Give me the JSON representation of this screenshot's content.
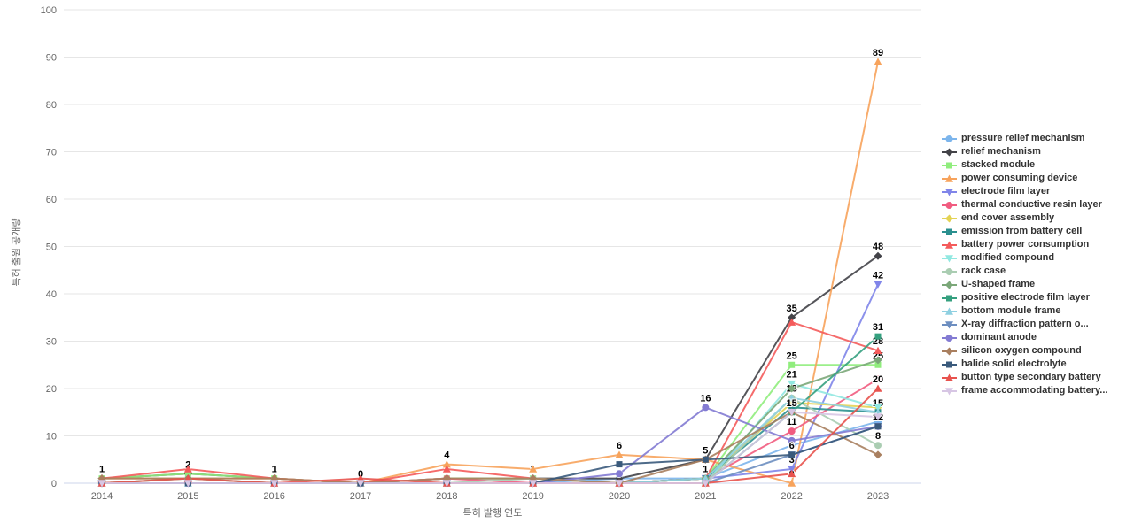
{
  "chart_data": {
    "type": "line",
    "title": "",
    "xlabel": "특허 발행 연도",
    "ylabel": "특허 출원 공개량",
    "ylim": [
      0,
      100
    ],
    "y_ticks": [
      0,
      10,
      20,
      30,
      40,
      50,
      60,
      70,
      80,
      90,
      100
    ],
    "categories": [
      "2014",
      "2015",
      "2016",
      "2017",
      "2018",
      "2019",
      "2020",
      "2021",
      "2022",
      "2023"
    ],
    "grid": "horizontal",
    "legend_position": "right",
    "series": [
      {
        "name": "pressure relief mechanism",
        "color": "#7cb5ec",
        "marker": "circle",
        "values": [
          0,
          0,
          0,
          0,
          0,
          0,
          1,
          1,
          8,
          13
        ],
        "labeled_years": []
      },
      {
        "name": "relief mechanism",
        "color": "#434348",
        "marker": "diamond",
        "values": [
          1,
          2,
          1,
          0,
          1,
          1,
          1,
          5,
          35,
          48
        ],
        "labeled_years": [
          "2014",
          "2015",
          "2016",
          "2017",
          "2018",
          "2019",
          "2022",
          "2023"
        ]
      },
      {
        "name": "stacked module",
        "color": "#90ed7d",
        "marker": "square",
        "values": [
          1,
          2,
          1,
          0,
          1,
          1,
          0,
          1,
          25,
          25
        ],
        "labeled_years": [
          "2020",
          "2022",
          "2023"
        ]
      },
      {
        "name": "power consuming device",
        "color": "#f7a35c",
        "marker": "triangle",
        "values": [
          1,
          1,
          1,
          0,
          4,
          3,
          6,
          5,
          0,
          89
        ],
        "labeled_years": [
          "2018",
          "2020",
          "2021",
          "2022",
          "2023"
        ]
      },
      {
        "name": "electrode film layer",
        "color": "#8085e9",
        "marker": "triangle-down",
        "values": [
          0,
          0,
          0,
          0,
          0,
          0,
          0,
          1,
          3,
          42
        ],
        "labeled_years": [
          "2022",
          "2023"
        ]
      },
      {
        "name": "thermal conductive resin layer",
        "color": "#f15c80",
        "marker": "circle",
        "values": [
          0,
          0,
          0,
          0,
          1,
          0,
          0,
          1,
          11,
          22
        ],
        "labeled_years": [
          "2022"
        ]
      },
      {
        "name": "end cover assembly",
        "color": "#e4d354",
        "marker": "diamond",
        "values": [
          0,
          0,
          0,
          0,
          0,
          0,
          0,
          1,
          17,
          16
        ],
        "labeled_years": []
      },
      {
        "name": "emission from battery cell",
        "color": "#2b908f",
        "marker": "square",
        "values": [
          0,
          0,
          0,
          0,
          0,
          0,
          0,
          1,
          16,
          15
        ],
        "labeled_years": [
          "2023"
        ]
      },
      {
        "name": "battery power consumption",
        "color": "#f45b5b",
        "marker": "triangle",
        "values": [
          1,
          3,
          1,
          0,
          3,
          1,
          0,
          1,
          34,
          28
        ],
        "labeled_years": [
          "2021",
          "2023"
        ]
      },
      {
        "name": "modified compound",
        "color": "#91e8e1",
        "marker": "triangle-down",
        "values": [
          0,
          0,
          0,
          0,
          0,
          0,
          0,
          0,
          21,
          16
        ],
        "labeled_years": [
          "2022"
        ]
      },
      {
        "name": "rack case",
        "color": "#aacdb2",
        "marker": "circle",
        "values": [
          0,
          1,
          0,
          0,
          0,
          1,
          0,
          0,
          18,
          8
        ],
        "labeled_years": [
          "2022",
          "2023"
        ]
      },
      {
        "name": "U-shaped frame",
        "color": "#7ba779",
        "marker": "diamond",
        "values": [
          0,
          1,
          0,
          0,
          0,
          0,
          0,
          1,
          20,
          26
        ],
        "labeled_years": []
      },
      {
        "name": "positive electrode film layer",
        "color": "#35a07f",
        "marker": "square",
        "values": [
          0,
          0,
          0,
          0,
          0,
          0,
          0,
          0,
          15,
          31
        ],
        "labeled_years": [
          "2023"
        ]
      },
      {
        "name": "bottom module frame",
        "color": "#8fd0e1",
        "marker": "triangle",
        "values": [
          0,
          0,
          0,
          0,
          0,
          0,
          0,
          1,
          18,
          15
        ],
        "labeled_years": []
      },
      {
        "name": "X-ray diffraction pattern o...",
        "color": "#6d8ec0",
        "marker": "triangle-down",
        "values": [
          0,
          0,
          0,
          0,
          0,
          0,
          0,
          0,
          6,
          12
        ],
        "labeled_years": []
      },
      {
        "name": "dominant anode",
        "color": "#837bd3",
        "marker": "circle",
        "values": [
          0,
          0,
          0,
          0,
          0,
          0,
          2,
          16,
          9,
          12
        ],
        "labeled_years": [
          "2021"
        ]
      },
      {
        "name": "silicon oxygen compound",
        "color": "#a97f5f",
        "marker": "diamond",
        "values": [
          1,
          1,
          1,
          0,
          1,
          1,
          0,
          5,
          15,
          6
        ],
        "labeled_years": []
      },
      {
        "name": "halide solid electrolyte",
        "color": "#3a5a7c",
        "marker": "square",
        "values": [
          0,
          0,
          0,
          0,
          0,
          0,
          4,
          5,
          6,
          12
        ],
        "labeled_years": [
          "2022",
          "2023"
        ]
      },
      {
        "name": "button type secondary battery",
        "color": "#e8534e",
        "marker": "triangle",
        "values": [
          0,
          1,
          0,
          1,
          0,
          0,
          0,
          0,
          2,
          20
        ],
        "labeled_years": [
          "2023"
        ]
      },
      {
        "name": "frame accommodating battery...",
        "color": "#d7c6e4",
        "marker": "triangle-down",
        "values": [
          0,
          0,
          0,
          0,
          0,
          0,
          0,
          0,
          15,
          14
        ],
        "labeled_years": [
          "2022"
        ]
      }
    ]
  },
  "layout_colors": {
    "background": "#ffffff",
    "grid_line": "#e6e6e6",
    "axis_line": "#ccd6eb",
    "axis_text": "#666666",
    "legend_text": "#333333",
    "data_label_text": "#000000"
  }
}
